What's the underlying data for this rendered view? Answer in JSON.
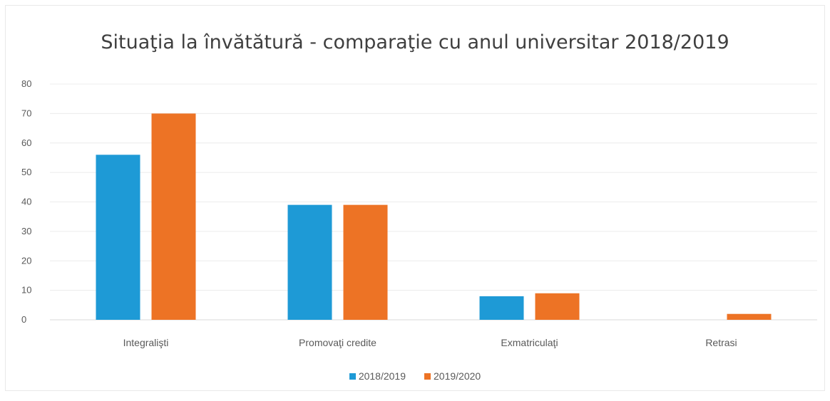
{
  "chart_data": {
    "type": "bar",
    "title": "Situaţia la învătătură - comparaţie cu anul universitar 2018/2019",
    "categories": [
      "Integralişti",
      "Promovaţi credite",
      "Exmatriculaţi",
      "Retrasi"
    ],
    "series": [
      {
        "name": "2018/2019",
        "color": "#1e9ad6",
        "values": [
          56,
          39,
          8,
          0
        ]
      },
      {
        "name": "2019/2020",
        "color": "#ed7325",
        "values": [
          70,
          39,
          9,
          2
        ]
      }
    ],
    "xlabel": "",
    "ylabel": "",
    "ylim": [
      0,
      80
    ],
    "yticks": [
      0,
      10,
      20,
      30,
      40,
      50,
      60,
      70,
      80
    ],
    "grid": true,
    "legend_position": "bottom"
  }
}
